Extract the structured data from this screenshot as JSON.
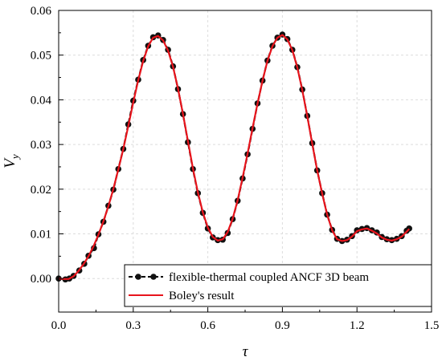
{
  "chart_data": {
    "type": "line",
    "xlabel": "τ",
    "ylabel_main": "V",
    "ylabel_sub": "y",
    "xlim": [
      0.0,
      1.5
    ],
    "ylim": [
      -0.0075,
      0.06
    ],
    "xticks": [
      0.0,
      0.3,
      0.6,
      0.9,
      1.2,
      1.5
    ],
    "xtick_labels": [
      "0.0",
      "0.3",
      "0.6",
      "0.9",
      "1.2",
      "1.5"
    ],
    "yticks": [
      0.0,
      0.01,
      0.02,
      0.03,
      0.04,
      0.05,
      0.06
    ],
    "ytick_labels": [
      "0.00",
      "0.01",
      "0.02",
      "0.03",
      "0.04",
      "0.05",
      "0.06"
    ],
    "grid": true,
    "legend_position": "bottom-right",
    "series": [
      {
        "name": "flexible-thermal coupled ANCF 3D beam",
        "style": "dashed-markers",
        "color": "#000000",
        "x": [
          0.0,
          0.027,
          0.043,
          0.06,
          0.083,
          0.103,
          0.12,
          0.142,
          0.16,
          0.18,
          0.2,
          0.22,
          0.24,
          0.26,
          0.28,
          0.3,
          0.32,
          0.34,
          0.36,
          0.38,
          0.4,
          0.42,
          0.44,
          0.46,
          0.48,
          0.5,
          0.52,
          0.54,
          0.56,
          0.58,
          0.6,
          0.62,
          0.64,
          0.66,
          0.68,
          0.7,
          0.72,
          0.74,
          0.76,
          0.78,
          0.8,
          0.82,
          0.84,
          0.86,
          0.88,
          0.9,
          0.92,
          0.94,
          0.96,
          0.98,
          1.0,
          1.02,
          1.04,
          1.06,
          1.08,
          1.1,
          1.12,
          1.14,
          1.16,
          1.18,
          1.2,
          1.22,
          1.24,
          1.26,
          1.28,
          1.3,
          1.32,
          1.34,
          1.36,
          1.38,
          1.4,
          1.41
        ],
        "y": [
          0.0,
          -0.0002,
          0.0,
          0.0006,
          0.0018,
          0.0033,
          0.0051,
          0.0068,
          0.0099,
          0.0127,
          0.0163,
          0.0199,
          0.0245,
          0.029,
          0.0345,
          0.0398,
          0.0445,
          0.0489,
          0.0521,
          0.054,
          0.0544,
          0.0534,
          0.0512,
          0.0475,
          0.0424,
          0.0368,
          0.0305,
          0.0245,
          0.0191,
          0.0147,
          0.0112,
          0.0092,
          0.0086,
          0.0087,
          0.0102,
          0.0133,
          0.0174,
          0.0224,
          0.0278,
          0.0335,
          0.0392,
          0.0443,
          0.0488,
          0.0521,
          0.0539,
          0.0546,
          0.0536,
          0.0512,
          0.0473,
          0.0423,
          0.0364,
          0.0303,
          0.0242,
          0.0191,
          0.0143,
          0.0109,
          0.0089,
          0.0084,
          0.0087,
          0.0095,
          0.0108,
          0.0111,
          0.0113,
          0.0108,
          0.0103,
          0.0093,
          0.0088,
          0.0086,
          0.0089,
          0.0095,
          0.0107,
          0.0112
        ]
      },
      {
        "name": "Boley's result",
        "style": "solid",
        "color": "#e8141c",
        "x": [
          0.0,
          0.02,
          0.04,
          0.06,
          0.08,
          0.1,
          0.12,
          0.14,
          0.16,
          0.18,
          0.2,
          0.22,
          0.24,
          0.26,
          0.28,
          0.3,
          0.32,
          0.34,
          0.36,
          0.38,
          0.4,
          0.42,
          0.44,
          0.46,
          0.48,
          0.5,
          0.52,
          0.54,
          0.56,
          0.58,
          0.6,
          0.62,
          0.64,
          0.66,
          0.68,
          0.7,
          0.72,
          0.74,
          0.76,
          0.78,
          0.8,
          0.82,
          0.84,
          0.86,
          0.88,
          0.9,
          0.92,
          0.94,
          0.96,
          0.98,
          1.0,
          1.02,
          1.04,
          1.06,
          1.08,
          1.1,
          1.12,
          1.14,
          1.16,
          1.18,
          1.2,
          1.22,
          1.24,
          1.26,
          1.28,
          1.3,
          1.32,
          1.34,
          1.36,
          1.38,
          1.4,
          1.41
        ],
        "y": [
          0.0,
          -0.0001,
          -0.0001,
          0.0005,
          0.0017,
          0.0032,
          0.005,
          0.0072,
          0.0098,
          0.0128,
          0.0162,
          0.0201,
          0.0244,
          0.029,
          0.0341,
          0.0394,
          0.0444,
          0.0487,
          0.052,
          0.0539,
          0.0543,
          0.0533,
          0.051,
          0.0474,
          0.0425,
          0.0368,
          0.0307,
          0.0247,
          0.0193,
          0.0148,
          0.0114,
          0.0093,
          0.0085,
          0.0088,
          0.0104,
          0.0134,
          0.0175,
          0.0226,
          0.028,
          0.0337,
          0.0392,
          0.0443,
          0.0487,
          0.052,
          0.0539,
          0.0545,
          0.0535,
          0.0511,
          0.0472,
          0.0422,
          0.0364,
          0.0302,
          0.0242,
          0.019,
          0.0143,
          0.0108,
          0.0088,
          0.0084,
          0.0086,
          0.0094,
          0.0106,
          0.011,
          0.0112,
          0.0107,
          0.0101,
          0.0092,
          0.0087,
          0.0085,
          0.0088,
          0.0094,
          0.0105,
          0.0111
        ]
      }
    ]
  },
  "colors": {
    "grid": "#dcdcdc",
    "axis": "#000000",
    "ancf_series": "#000000",
    "boley_series": "#e8141c"
  }
}
